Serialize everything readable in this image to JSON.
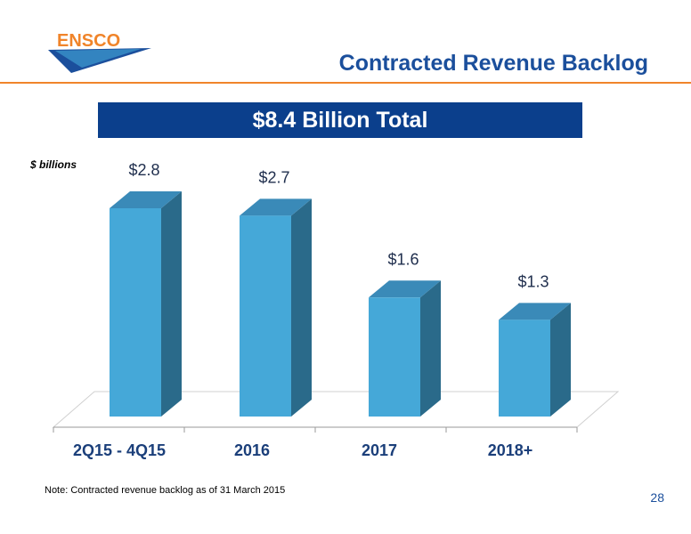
{
  "header": {
    "logo_text": "ENSCO",
    "title": "Contracted Revenue Backlog"
  },
  "banner": {
    "text": "$8.4 Billion Total"
  },
  "units_label": "$ billions",
  "footer": {
    "note": "Note: Contracted revenue backlog as of 31 March 2015",
    "page_number": "28"
  },
  "colors": {
    "brand_blue": "#1b4f9c",
    "banner_blue": "#0b3f8c",
    "accent_orange": "#f0842a",
    "bar_front": "#45a8d8",
    "bar_side": "#2a6a8a",
    "bar_top": "#3a8ab8"
  },
  "chart_data": {
    "type": "bar",
    "categories": [
      "2Q15 - 4Q15",
      "2016",
      "2017",
      "2018+"
    ],
    "values": [
      2.8,
      2.7,
      1.6,
      1.3
    ],
    "value_labels": [
      "$2.8",
      "$2.7",
      "$1.6",
      "$1.3"
    ],
    "ylabel": "$ billions",
    "ylim": [
      0,
      2.8
    ],
    "grid": false,
    "legend": "none",
    "style": "3d"
  }
}
